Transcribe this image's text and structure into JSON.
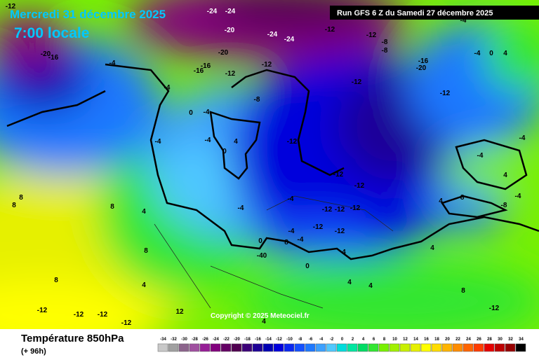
{
  "header": {
    "date": "Mercredi 31 décembre 2025",
    "time": "7:00 locale",
    "run": "Run GFS 6 Z du Samedi 27 décembre 2025"
  },
  "copyright": "Copyright © 2025 Meteociel.fr",
  "legend": {
    "title": "Température 850hPa",
    "subtitle": "(+ 96h)",
    "ticks": [
      -34,
      -32,
      -30,
      -28,
      -26,
      -24,
      -22,
      -20,
      -18,
      -16,
      -14,
      -12,
      -10,
      -8,
      -6,
      -4,
      -2,
      0,
      2,
      4,
      6,
      8,
      10,
      12,
      14,
      16,
      18,
      20,
      22,
      24,
      26,
      28,
      30,
      32,
      34
    ],
    "colors": [
      "#c8c8c8",
      "#a0a0a0",
      "#8c648c",
      "#a050a0",
      "#961e96",
      "#82007d",
      "#640064",
      "#500050",
      "#3c0078",
      "#1e0096",
      "#0000b4",
      "#0000dc",
      "#0a28f0",
      "#1450ff",
      "#1e78ff",
      "#3ca0ff",
      "#50c8ff",
      "#00dcdc",
      "#00e6a0",
      "#00dc64",
      "#32e632",
      "#78f000",
      "#a0f000",
      "#c8f000",
      "#e6f000",
      "#ffff00",
      "#ffdc00",
      "#ffb400",
      "#ff8c00",
      "#ff6400",
      "#ff3c00",
      "#e60000",
      "#be0000",
      "#960000",
      "#000000"
    ]
  },
  "map_labels": [
    -12,
    -24,
    -24,
    -20,
    -24,
    -24,
    -12,
    -12,
    -8,
    -8,
    -20,
    -16,
    -20,
    -16,
    -16,
    -4,
    -12,
    -12,
    -12,
    -16,
    -20,
    -12,
    -4,
    -4,
    0,
    4,
    -4,
    0,
    -4,
    -8,
    4,
    -4,
    -4,
    0,
    -12,
    -12,
    -12,
    -4,
    -4,
    -12,
    -12,
    -12,
    -4,
    -12,
    -12,
    0,
    8,
    -4,
    4,
    4,
    -40,
    0,
    8,
    4,
    8,
    8,
    4,
    4,
    4,
    -12,
    -12,
    -12,
    -12,
    12,
    4,
    -12,
    -4,
    -4,
    4,
    -8,
    -8,
    -4,
    8,
    8,
    8,
    4
  ]
}
